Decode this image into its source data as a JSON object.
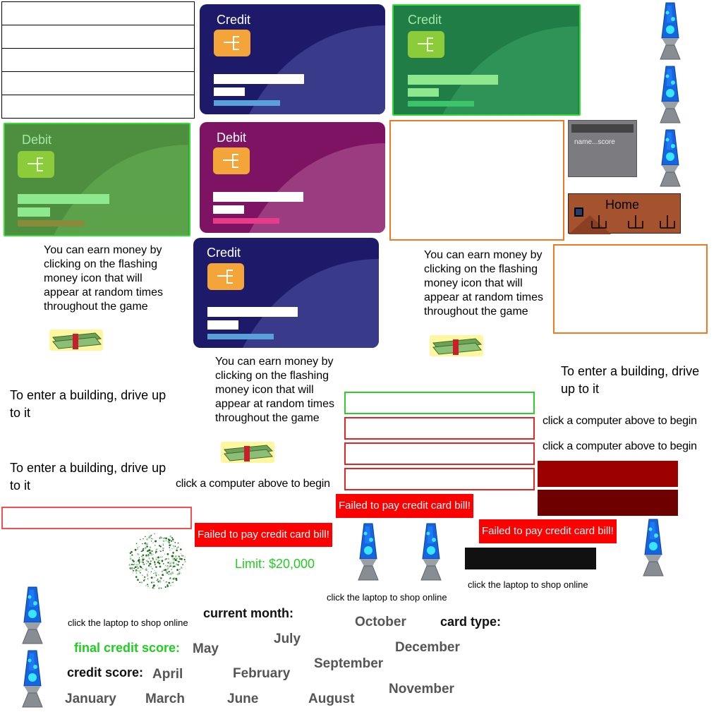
{
  "cards": [
    {
      "id": "credit-blue-1",
      "label": "Credit"
    },
    {
      "id": "credit-green",
      "label": "Credit"
    },
    {
      "id": "debit-green",
      "label": "Debit"
    },
    {
      "id": "debit-purple",
      "label": "Debit"
    },
    {
      "id": "credit-blue-2",
      "label": "Credit"
    }
  ],
  "scoreboard": {
    "header": "name...score"
  },
  "home_button": {
    "label": "Home"
  },
  "money_tip": "You can earn money by clicking on the flashing money icon that will appear at random times throughout the game",
  "drive_tip": "To enter a building, drive up to it",
  "computer_tip": "click a computer above to begin",
  "laptop_tip": "click the laptop to shop online",
  "fail_message": "Failed to pay credit card bill!",
  "limit": "Limit: $20,000",
  "labels": {
    "current_month": "current month:",
    "card_type": "card type:",
    "final_credit_score": "final credit score:",
    "credit_score": "credit score:"
  },
  "months": {
    "january": "January",
    "february": "February",
    "march": "March",
    "april": "April",
    "may": "May",
    "june": "June",
    "july": "July",
    "august": "August",
    "september": "September",
    "october": "October",
    "november": "November",
    "december": "December"
  },
  "colors": {
    "credit_blue": "#232370",
    "credit_green": "#1f8a4a",
    "debit_green": "#4e9a3e",
    "debit_purple": "#8a1a5e",
    "chip_orange": "#f3a53a",
    "chip_green": "#8ccc3a",
    "fail_red": "#ff0000",
    "limit_green": "#22cc22",
    "home_brown": "#a0522d"
  },
  "icons": [
    "lava-lamp-icon",
    "money-stack-icon",
    "firework-icon",
    "chip-icon"
  ]
}
